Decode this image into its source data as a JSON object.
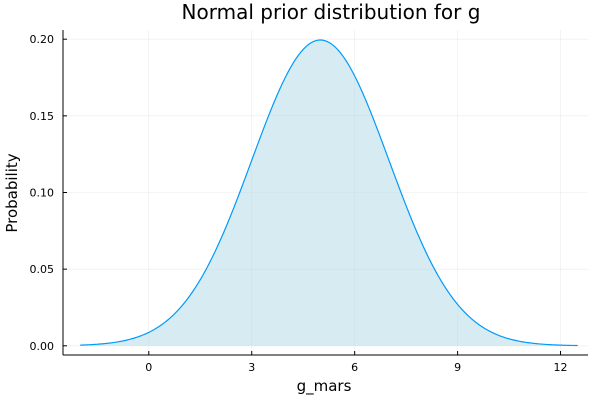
{
  "chart_data": {
    "type": "area",
    "title": "Normal prior distribution for g",
    "xlabel": "g_mars",
    "ylabel": "Probability",
    "distribution": {
      "family": "normal",
      "mean": 5,
      "sd": 2
    },
    "xlim": [
      -2.5,
      12.8
    ],
    "ylim": [
      -0.006,
      0.206
    ],
    "x_ticks": [
      0,
      3,
      6,
      9,
      12
    ],
    "x_tick_labels": [
      "0",
      "3",
      "6",
      "9",
      "12"
    ],
    "y_ticks": [
      0.0,
      0.05,
      0.1,
      0.15,
      0.2
    ],
    "y_tick_labels": [
      "0.00",
      "0.05",
      "0.10",
      "0.15",
      "0.20"
    ],
    "x_range": [
      -2,
      12.5
    ],
    "grid": true,
    "legend": "none",
    "series": [
      {
        "x": [
          -2,
          -1,
          0,
          1,
          2,
          3,
          4,
          5,
          6,
          7,
          8,
          9,
          10,
          11,
          12,
          12.5
        ],
        "values": [
          0.0004,
          0.0022,
          0.0088,
          0.027,
          0.0648,
          0.121,
          0.176,
          0.1995,
          0.176,
          0.121,
          0.0648,
          0.027,
          0.0088,
          0.0022,
          0.0004,
          0.0002
        ]
      }
    ],
    "colors": {
      "line": "#009AFA",
      "fill": "#ADD8E6"
    }
  }
}
